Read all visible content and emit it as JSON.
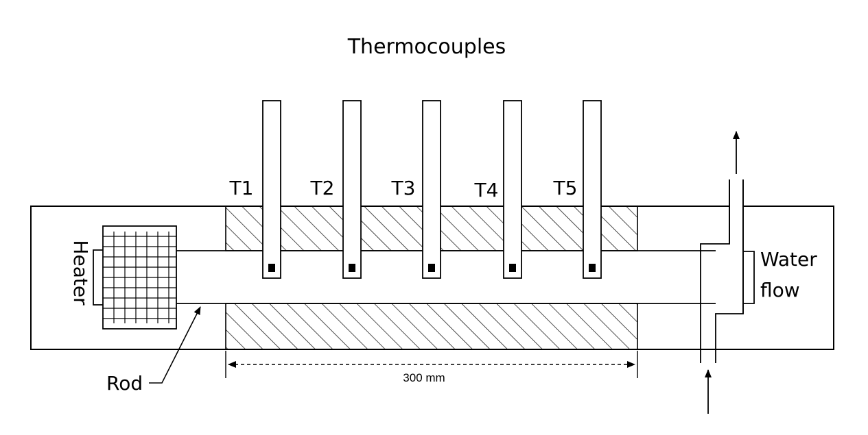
{
  "title": "Thermocouples",
  "thermocouples": [
    {
      "label": "T1"
    },
    {
      "label": "T2"
    },
    {
      "label": "T3"
    },
    {
      "label": "T4"
    },
    {
      "label": "T5"
    }
  ],
  "labels": {
    "heater": "Heater",
    "rod": "Rod",
    "water_line1": "Water",
    "water_line2": "flow",
    "dimension": "300 mm"
  },
  "colors": {
    "line": "#000000",
    "background": "#ffffff"
  }
}
